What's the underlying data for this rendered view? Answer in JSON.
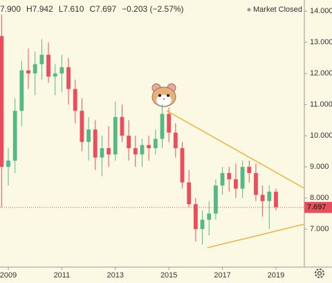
{
  "chart_data": {
    "type": "candlestick",
    "header": [
      "7.900",
      "H7.942",
      "L7.610",
      "C7.697",
      "−0.203 (−2.57%)"
    ],
    "status": "Market Closed",
    "last_price": {
      "value": 7.697,
      "label": "7.697"
    },
    "up_color": "#53b987",
    "down_color": "#eb4d5c",
    "x": [
      2008.75,
      2009.0,
      2009.25,
      2009.5,
      2009.75,
      2010.0,
      2010.25,
      2010.5,
      2010.75,
      2011.0,
      2011.25,
      2011.5,
      2011.75,
      2012.0,
      2012.25,
      2012.5,
      2012.75,
      2013.0,
      2013.25,
      2013.5,
      2013.75,
      2014.0,
      2014.25,
      2014.5,
      2014.75,
      2015.0,
      2015.25,
      2015.5,
      2015.75,
      2016.0,
      2016.25,
      2016.5,
      2016.75,
      2017.0,
      2017.25,
      2017.5,
      2017.75,
      2018.0,
      2018.25,
      2018.5,
      2018.75,
      2019.0
    ],
    "open": [
      13.2,
      9.0,
      9.2,
      10.8,
      12.1,
      12.0,
      12.3,
      12.6,
      11.9,
      12.0,
      12.2,
      11.5,
      10.8,
      9.8,
      10.2,
      9.3,
      9.6,
      9.4,
      10.6,
      10.0,
      9.6,
      9.4,
      9.7,
      9.6,
      9.9,
      10.7,
      10.1,
      9.6,
      8.5,
      7.8,
      7.0,
      7.3,
      7.5,
      8.4,
      8.8,
      8.6,
      8.3,
      9.0,
      8.8,
      8.1,
      7.9,
      8.2
    ],
    "high": [
      13.9,
      9.6,
      11.2,
      12.4,
      12.8,
      12.7,
      13.1,
      13.0,
      12.3,
      12.6,
      12.5,
      11.8,
      11.2,
      10.6,
      10.5,
      10.0,
      10.3,
      11.1,
      11.0,
      10.5,
      10.0,
      9.9,
      10.0,
      10.2,
      11.0,
      10.9,
      10.4,
      9.8,
      8.9,
      8.0,
      7.6,
      7.9,
      8.6,
      9.0,
      9.0,
      9.1,
      9.2,
      9.2,
      9.1,
      8.4,
      8.4,
      8.3
    ],
    "low": [
      7.7,
      8.4,
      8.8,
      10.3,
      11.5,
      11.3,
      11.8,
      11.7,
      11.3,
      11.4,
      11.0,
      10.4,
      9.5,
      9.2,
      8.9,
      8.7,
      9.0,
      9.2,
      9.8,
      9.2,
      9.0,
      9.0,
      9.2,
      9.4,
      9.6,
      9.8,
      9.3,
      8.3,
      7.7,
      6.6,
      6.5,
      6.8,
      7.3,
      8.1,
      8.2,
      8.0,
      8.0,
      8.5,
      7.9,
      7.4,
      7.0,
      7.6
    ],
    "close": [
      9.0,
      9.2,
      10.8,
      12.1,
      12.0,
      12.3,
      12.6,
      11.9,
      12.0,
      12.2,
      11.5,
      10.8,
      9.8,
      10.2,
      9.3,
      9.6,
      9.4,
      10.6,
      10.0,
      9.6,
      9.4,
      9.7,
      9.6,
      9.9,
      10.7,
      10.1,
      9.6,
      8.5,
      7.8,
      7.0,
      7.3,
      7.5,
      8.4,
      8.8,
      8.6,
      8.3,
      9.0,
      8.8,
      8.1,
      7.9,
      8.2,
      7.7
    ],
    "trendlines": [
      {
        "color": "#f5a623",
        "x": [
          2014.92,
          2020.06
        ],
        "y": [
          10.8,
          8.31
        ]
      },
      {
        "color": "#f5a623",
        "x": [
          2016.43,
          2020.06
        ],
        "y": [
          6.4,
          7.16
        ]
      }
    ],
    "xlim": [
      2008.69,
      2020.06
    ],
    "xticks": [
      2009,
      2011,
      2013,
      2015,
      2017,
      2019
    ],
    "ylim": [
      5.78,
      14.36
    ],
    "yticks": [
      {
        "value": 7,
        "label": "7.000"
      },
      {
        "value": 8,
        "label": "8.000"
      },
      {
        "value": 9,
        "label": "9.000"
      },
      {
        "value": 10,
        "label": "10.000"
      },
      {
        "value": 11,
        "label": "11.000"
      },
      {
        "value": 12,
        "label": "12.000"
      },
      {
        "value": 13,
        "label": "13.000"
      },
      {
        "value": 14,
        "label": "14.000"
      }
    ]
  }
}
